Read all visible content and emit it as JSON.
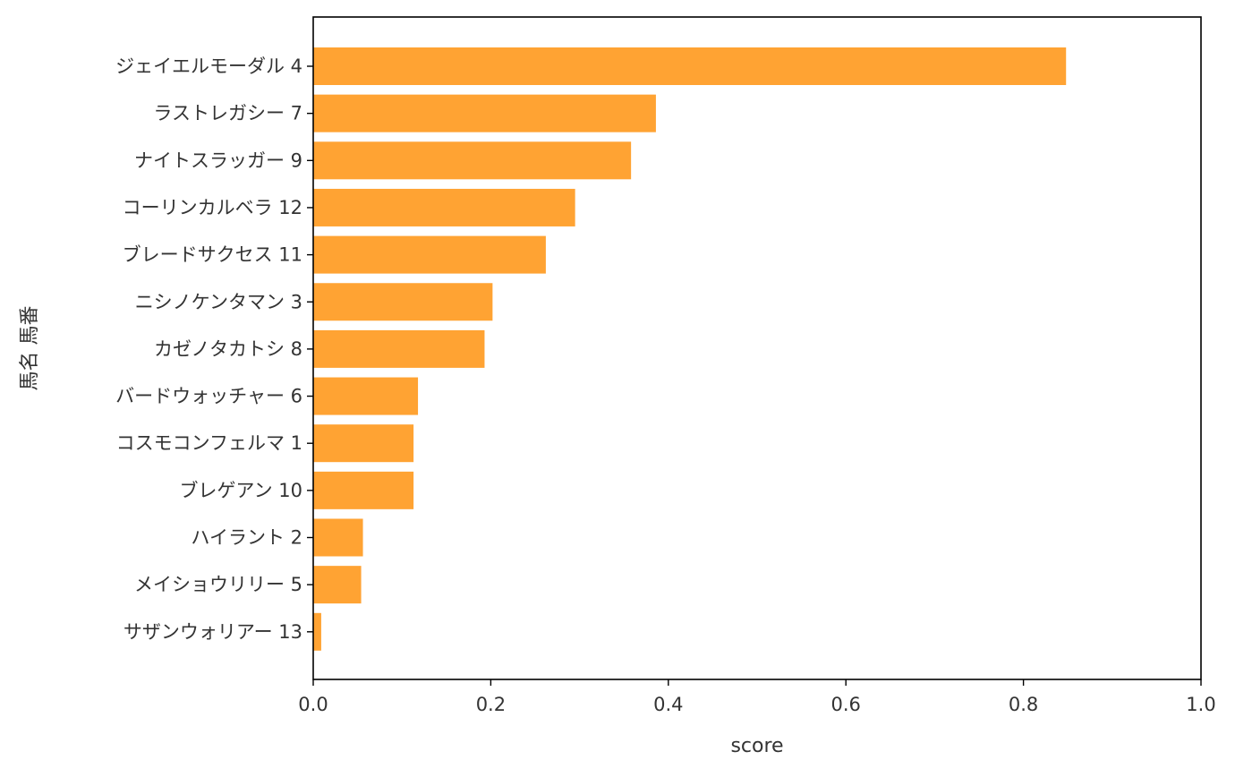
{
  "chart_data": {
    "type": "bar",
    "orientation": "horizontal",
    "xlabel": "score",
    "ylabel": "馬名 馬番",
    "xlim": [
      0.0,
      1.0
    ],
    "xticks": [
      "0.0",
      "0.2",
      "0.4",
      "0.6",
      "0.8",
      "1.0"
    ],
    "bar_color": "#ffa333",
    "grid": false,
    "categories": [
      "ジェイエルモーダル 4",
      "ラストレガシー 7",
      "ナイトスラッガー 9",
      "コーリンカルベラ 12",
      "ブレードサクセス 11",
      "ニシノケンタマン 3",
      "カゼノタカトシ 8",
      "バードウォッチャー 6",
      "コスモコンフェルマ 1",
      "ブレゲアン 10",
      "ハイラント 2",
      "メイショウリリー 5",
      "サザンウォリアー 13"
    ],
    "values": [
      0.848,
      0.386,
      0.358,
      0.295,
      0.262,
      0.202,
      0.193,
      0.118,
      0.113,
      0.113,
      0.056,
      0.054,
      0.009
    ]
  }
}
